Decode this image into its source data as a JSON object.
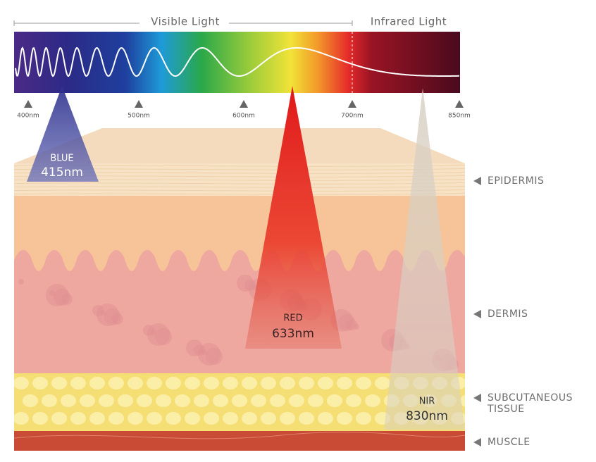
{
  "spectrum": {
    "labels": [
      "Visible Light",
      "Infrared Light"
    ],
    "ticks": [
      "400nm",
      "500nm",
      "600nm",
      "700nm",
      "850nm"
    ]
  },
  "beams": [
    {
      "name": "BLUE",
      "wavelength": "415nm"
    },
    {
      "name": "RED",
      "wavelength": "633nm"
    },
    {
      "name": "NIR",
      "wavelength": "830nm"
    }
  ],
  "layers": [
    {
      "label": [
        "EPIDERMIS"
      ]
    },
    {
      "label": [
        "DERMIS"
      ]
    },
    {
      "label": [
        "SUBCUTANEOUS",
        "TISSUE"
      ]
    },
    {
      "label": [
        "MUSCLE"
      ]
    }
  ]
}
